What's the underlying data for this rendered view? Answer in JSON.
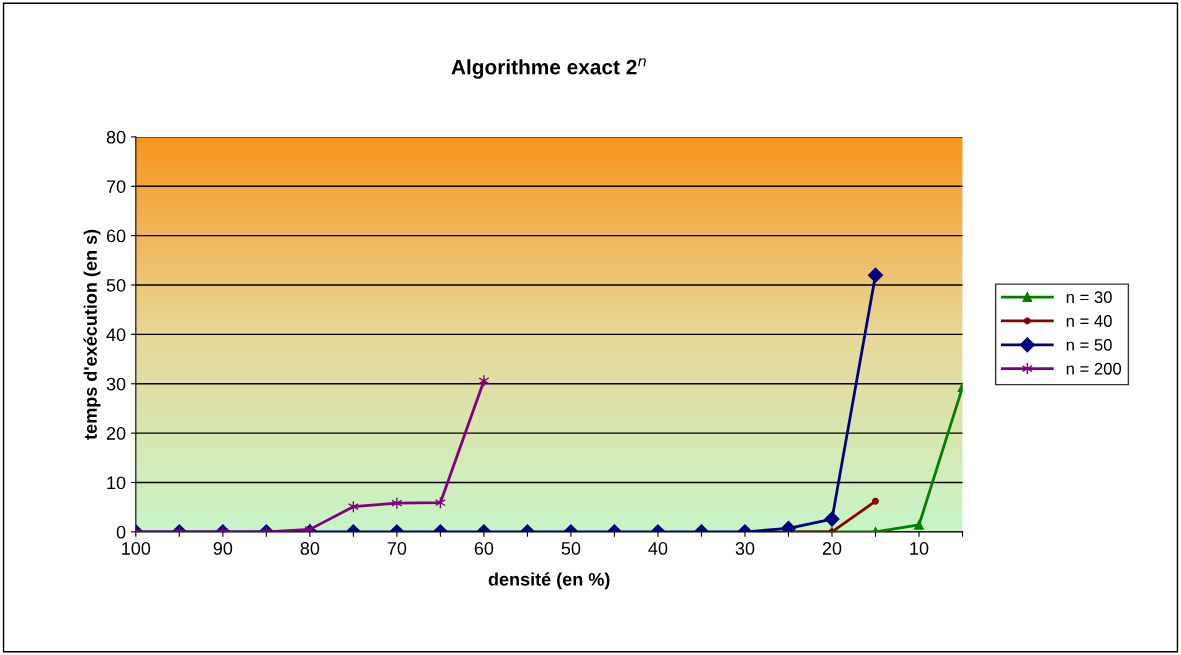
{
  "chart_data": {
    "type": "line",
    "title": "Algorithme exact 2$^{n}$",
    "xlabel": "densité (en %)",
    "ylabel": "temps d'exécution (en s)",
    "categories": [
      "100",
      null,
      "90",
      null,
      "80",
      null,
      "70",
      null,
      "60",
      null,
      "50",
      null,
      "40",
      null,
      "30",
      null,
      "20",
      null,
      "10",
      null
    ],
    "series": [
      {
        "name": "n = 30",
        "color": "#008000",
        "marker": "triangle",
        "values": [
          null,
          null,
          null,
          null,
          null,
          null,
          null,
          null,
          null,
          null,
          null,
          null,
          null,
          null,
          null,
          0,
          0,
          0,
          1.4,
          29.3
        ]
      },
      {
        "name": "n = 40",
        "color": "#8b0000",
        "marker": "circle",
        "values": [
          null,
          null,
          null,
          null,
          null,
          null,
          null,
          null,
          null,
          null,
          null,
          null,
          null,
          null,
          null,
          0,
          0,
          6.2,
          null,
          null
        ]
      },
      {
        "name": "n = 50",
        "color": "#000080",
        "marker": "diamond",
        "values": [
          0,
          0,
          0,
          0,
          0,
          0,
          0,
          0,
          0,
          0,
          0,
          0,
          0,
          0,
          0,
          0.7,
          2.6,
          52,
          null,
          null
        ]
      },
      {
        "name": "n = 200",
        "color": "#800080",
        "marker": "cross",
        "values": [
          0,
          0,
          0,
          0,
          0.5,
          5.1,
          5.8,
          5.9,
          30.6,
          null,
          null,
          null,
          null,
          null,
          null,
          null,
          null,
          null,
          null,
          null
        ]
      }
    ],
    "ylim": [
      0,
      80
    ],
    "yticks": [
      0,
      10,
      20,
      30,
      40,
      50,
      60,
      70,
      80
    ],
    "grid": "y",
    "legend": "right"
  }
}
